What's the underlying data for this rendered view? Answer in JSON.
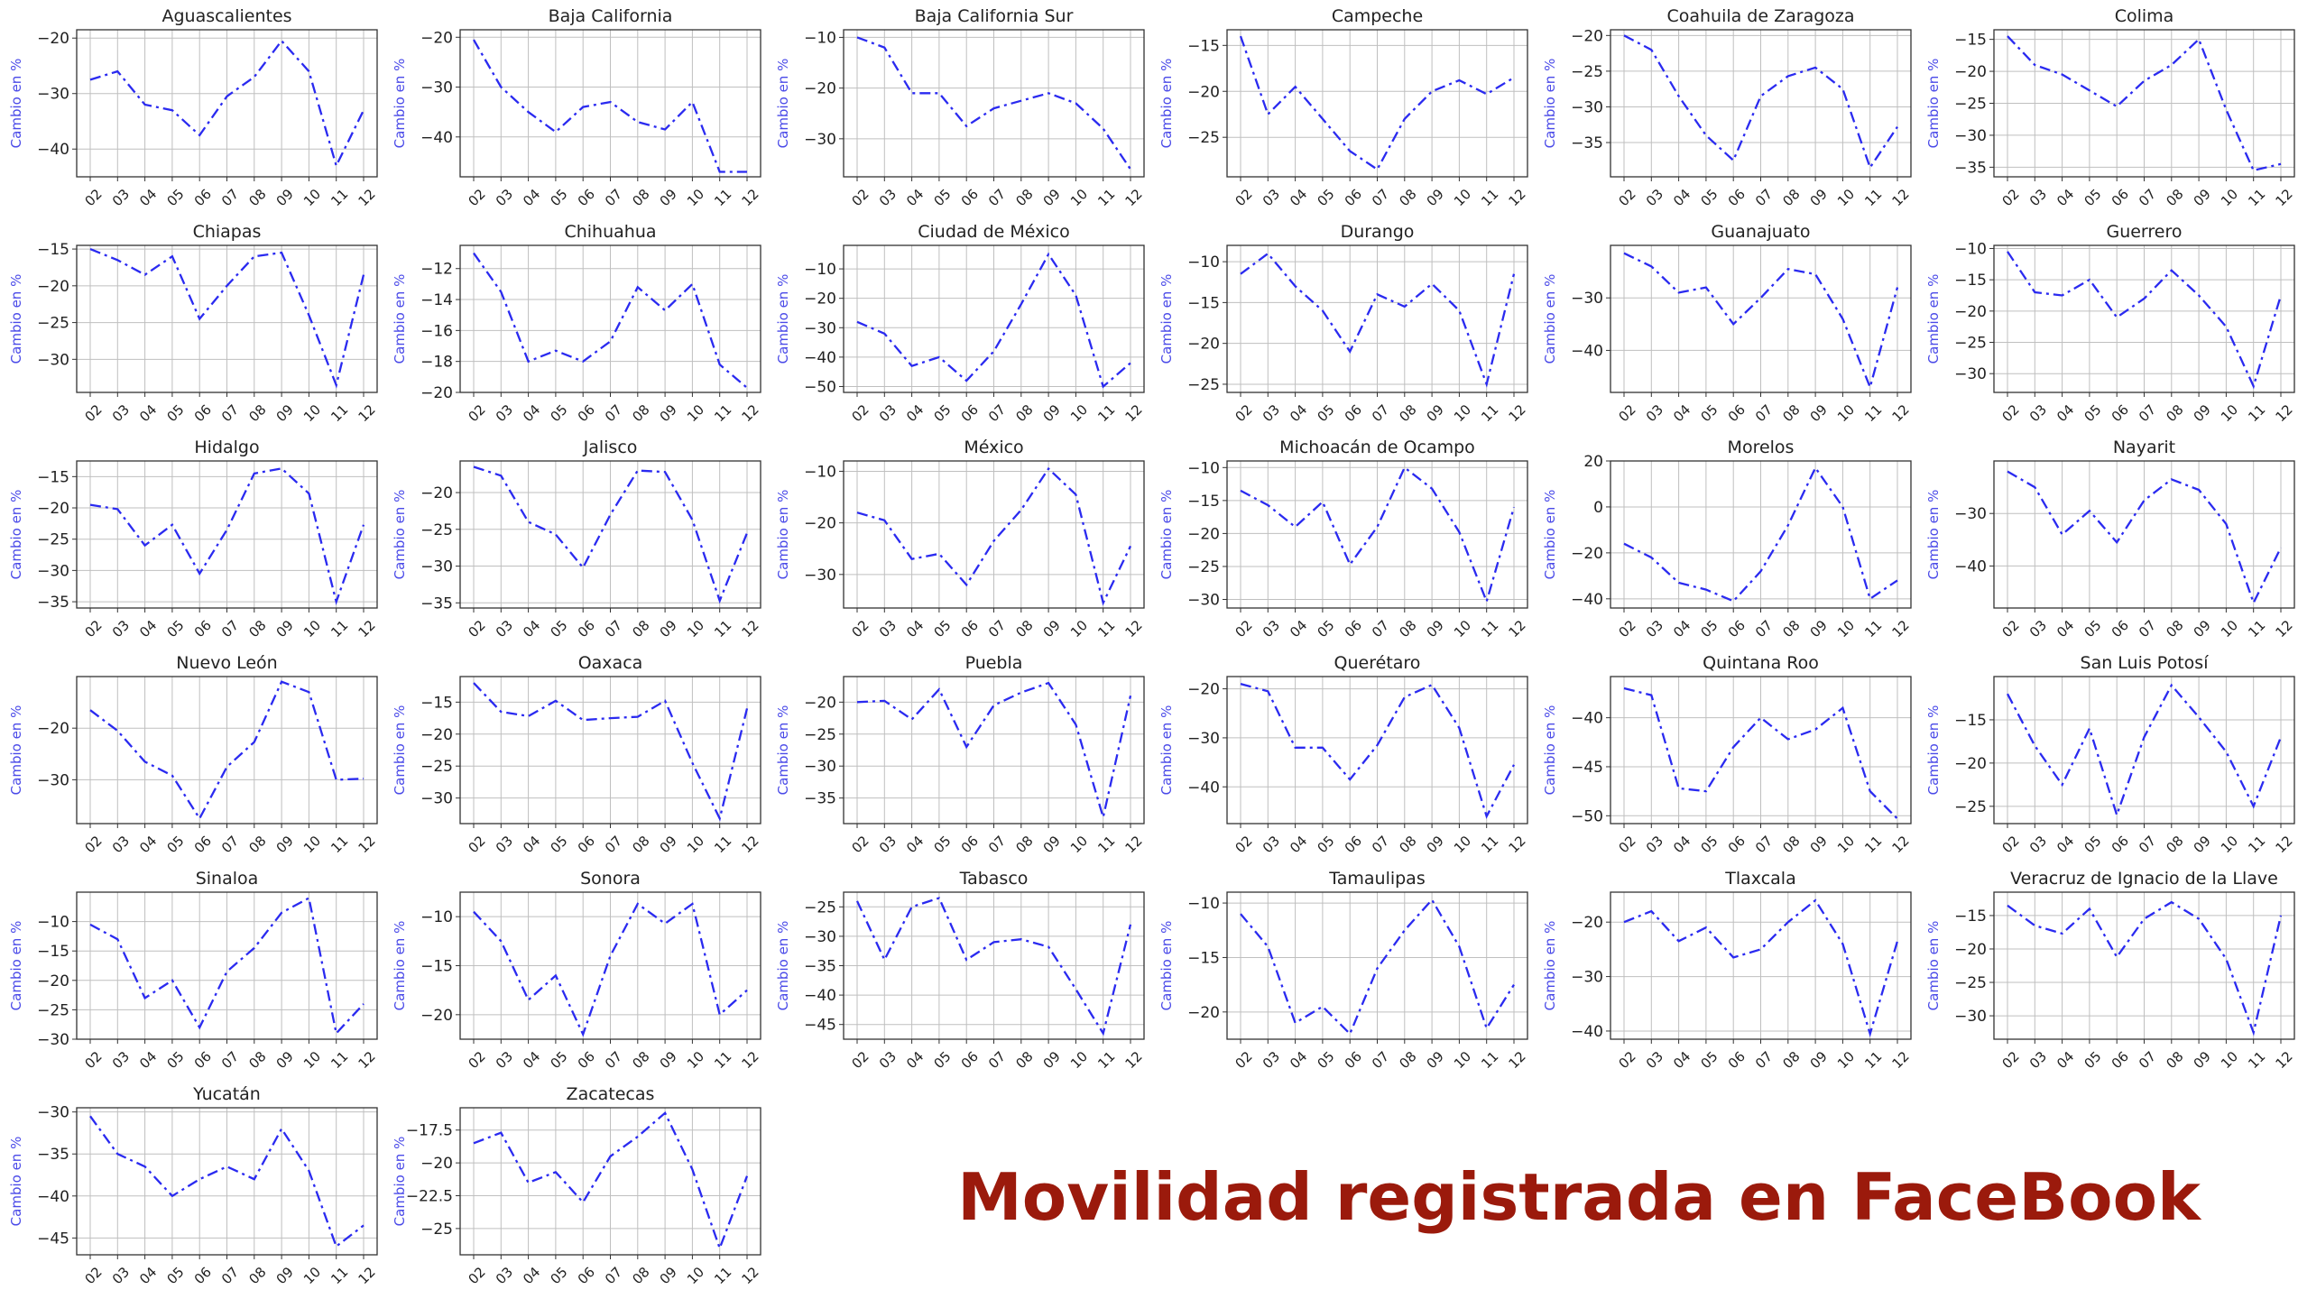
{
  "footer_title": "Movilidad registrada en FaceBook",
  "colors": {
    "line": "#2a2af0",
    "ylabel": "#4a4ae8",
    "grid": "#bfbfbf",
    "title": "#9b1a0c"
  },
  "chart_data": [
    {
      "type": "line",
      "title": "Aguascalientes",
      "ylabel": "Cambio en %",
      "x": [
        "02",
        "03",
        "04",
        "05",
        "06",
        "07",
        "08",
        "09",
        "10",
        "11",
        "12"
      ],
      "values": [
        -27.5,
        -26,
        -32,
        -33,
        -37.5,
        -30.5,
        -27,
        -20.5,
        -26,
        -43,
        -33
      ],
      "ylim": [
        -45,
        -18.5
      ],
      "yticks": [
        -20,
        -30,
        -40
      ]
    },
    {
      "type": "line",
      "title": "Baja California",
      "ylabel": "Cambio en %",
      "x": [
        "02",
        "03",
        "04",
        "05",
        "06",
        "07",
        "08",
        "09",
        "10",
        "11",
        "12"
      ],
      "values": [
        -20.5,
        -30,
        -35,
        -39,
        -34,
        -33,
        -37,
        -38.5,
        -33,
        -47,
        -47
      ],
      "ylim": [
        -48,
        -18.5
      ],
      "yticks": [
        -20,
        -30,
        -40
      ]
    },
    {
      "type": "line",
      "title": "Baja California Sur",
      "ylabel": "Cambio en %",
      "x": [
        "02",
        "03",
        "04",
        "05",
        "06",
        "07",
        "08",
        "09",
        "10",
        "11",
        "12"
      ],
      "values": [
        -10,
        -12,
        -21,
        -21,
        -27.5,
        -24,
        -22.5,
        -21,
        -23,
        -28,
        -36
      ],
      "ylim": [
        -37.5,
        -8.5
      ],
      "yticks": [
        -10,
        -20,
        -30
      ]
    },
    {
      "type": "line",
      "title": "Campeche",
      "ylabel": "Cambio en %",
      "x": [
        "02",
        "03",
        "04",
        "05",
        "06",
        "07",
        "08",
        "09",
        "10",
        "11",
        "12"
      ],
      "values": [
        -14,
        -22.5,
        -19.5,
        -23,
        -26.5,
        -28.5,
        -23,
        -20,
        -18.8,
        -20.3,
        -18.5
      ],
      "ylim": [
        -29.3,
        -13.3
      ],
      "yticks": [
        -15,
        -20,
        -25
      ]
    },
    {
      "type": "line",
      "title": "Coahuila de Zaragoza",
      "ylabel": "Cambio en %",
      "x": [
        "02",
        "03",
        "04",
        "05",
        "06",
        "07",
        "08",
        "09",
        "10",
        "11",
        "12"
      ],
      "values": [
        -20,
        -22,
        -28.5,
        -34,
        -37.5,
        -28.5,
        -25.7,
        -24.5,
        -27.5,
        -38.5,
        -32.8
      ],
      "ylim": [
        -39.8,
        -19.2
      ],
      "yticks": [
        -20,
        -25,
        -30,
        -35
      ]
    },
    {
      "type": "line",
      "title": "Colima",
      "ylabel": "Cambio en %",
      "x": [
        "02",
        "03",
        "04",
        "05",
        "06",
        "07",
        "08",
        "09",
        "10",
        "11",
        "12"
      ],
      "values": [
        -14.5,
        -19,
        -20.5,
        -23,
        -25.5,
        -21.5,
        -19,
        -15,
        -26,
        -35.5,
        -34.5
      ],
      "ylim": [
        -36.5,
        -13.5
      ],
      "yticks": [
        -15,
        -20,
        -25,
        -30,
        -35
      ]
    },
    {
      "type": "line",
      "title": "Chiapas",
      "ylabel": "Cambio en %",
      "x": [
        "02",
        "03",
        "04",
        "05",
        "06",
        "07",
        "08",
        "09",
        "10",
        "11",
        "12"
      ],
      "values": [
        -15,
        -16.5,
        -18.5,
        -16,
        -24.5,
        -20,
        -16,
        -15.5,
        -24,
        -33.5,
        -18.5
      ],
      "ylim": [
        -34.5,
        -14.5
      ],
      "yticks": [
        -15,
        -20,
        -25,
        -30
      ]
    },
    {
      "type": "line",
      "title": "Chihuahua",
      "ylabel": "Cambio en %",
      "x": [
        "02",
        "03",
        "04",
        "05",
        "06",
        "07",
        "08",
        "09",
        "10",
        "11",
        "12"
      ],
      "values": [
        -11,
        -13.5,
        -18,
        -17.3,
        -18,
        -16.7,
        -13.2,
        -14.7,
        -13,
        -18.2,
        -19.7
      ],
      "ylim": [
        -20,
        -10.5
      ],
      "yticks": [
        -12,
        -14,
        -16,
        -18,
        -20
      ]
    },
    {
      "type": "line",
      "title": "Ciudad de México",
      "ylabel": "Cambio en %",
      "x": [
        "02",
        "03",
        "04",
        "05",
        "06",
        "07",
        "08",
        "09",
        "10",
        "11",
        "12"
      ],
      "values": [
        -28,
        -32,
        -43,
        -40,
        -48,
        -38,
        -22,
        -5,
        -19,
        -50,
        -42
      ],
      "ylim": [
        -52,
        -2
      ],
      "yticks": [
        -10,
        -20,
        -30,
        -40,
        -50
      ]
    },
    {
      "type": "line",
      "title": "Durango",
      "ylabel": "Cambio en %",
      "x": [
        "02",
        "03",
        "04",
        "05",
        "06",
        "07",
        "08",
        "09",
        "10",
        "11",
        "12"
      ],
      "values": [
        -11.5,
        -9,
        -13,
        -16,
        -21,
        -14,
        -15.5,
        -12.7,
        -16,
        -25,
        -11.5
      ],
      "ylim": [
        -26,
        -8
      ],
      "yticks": [
        -10,
        -15,
        -20,
        -25
      ]
    },
    {
      "type": "line",
      "title": "Guanajuato",
      "ylabel": "Cambio en %",
      "x": [
        "02",
        "03",
        "04",
        "05",
        "06",
        "07",
        "08",
        "09",
        "10",
        "11",
        "12"
      ],
      "values": [
        -21.5,
        -24,
        -29,
        -28,
        -35,
        -30,
        -24.5,
        -25.5,
        -34,
        -47,
        -28
      ],
      "ylim": [
        -48,
        -20
      ],
      "yticks": [
        -30,
        -40
      ]
    },
    {
      "type": "line",
      "title": "Guerrero",
      "ylabel": "Cambio en %",
      "x": [
        "02",
        "03",
        "04",
        "05",
        "06",
        "07",
        "08",
        "09",
        "10",
        "11",
        "12"
      ],
      "values": [
        -10.5,
        -17,
        -17.5,
        -15,
        -21,
        -18,
        -13.5,
        -17.5,
        -22.5,
        -32,
        -17.5
      ],
      "ylim": [
        -33,
        -9.5
      ],
      "yticks": [
        -10,
        -15,
        -20,
        -25,
        -30
      ]
    },
    {
      "type": "line",
      "title": "Hidalgo",
      "ylabel": "Cambio en %",
      "x": [
        "02",
        "03",
        "04",
        "05",
        "06",
        "07",
        "08",
        "09",
        "10",
        "11",
        "12"
      ],
      "values": [
        -19.5,
        -20.2,
        -26,
        -22.7,
        -30.5,
        -23.5,
        -14.5,
        -13.7,
        -17.7,
        -35,
        -22.7
      ],
      "ylim": [
        -36,
        -12.5
      ],
      "yticks": [
        -15,
        -20,
        -25,
        -30,
        -35
      ]
    },
    {
      "type": "line",
      "title": "Jalisco",
      "ylabel": "Cambio en %",
      "x": [
        "02",
        "03",
        "04",
        "05",
        "06",
        "07",
        "08",
        "09",
        "10",
        "11",
        "12"
      ],
      "values": [
        -16.5,
        -17.7,
        -24,
        -25.7,
        -30.2,
        -23,
        -17,
        -17.2,
        -23.7,
        -34.7,
        -25.5
      ],
      "ylim": [
        -35.7,
        -15.7
      ],
      "yticks": [
        -20,
        -25,
        -30,
        -35
      ]
    },
    {
      "type": "line",
      "title": "México",
      "ylabel": "Cambio en %",
      "x": [
        "02",
        "03",
        "04",
        "05",
        "06",
        "07",
        "08",
        "09",
        "10",
        "11",
        "12"
      ],
      "values": [
        -18,
        -19.5,
        -27,
        -26,
        -32,
        -23.5,
        -17.5,
        -9.5,
        -14.5,
        -35.5,
        -24.5
      ],
      "ylim": [
        -36.5,
        -8
      ],
      "yticks": [
        -10,
        -20,
        -30
      ]
    },
    {
      "type": "line",
      "title": "Michoacán de Ocampo",
      "ylabel": "Cambio en %",
      "x": [
        "02",
        "03",
        "04",
        "05",
        "06",
        "07",
        "08",
        "09",
        "10",
        "11",
        "12"
      ],
      "values": [
        -13.5,
        -15.7,
        -19,
        -15.2,
        -24.7,
        -19,
        -10,
        -13.2,
        -19.8,
        -30.3,
        -16
      ],
      "ylim": [
        -31.3,
        -9
      ],
      "yticks": [
        -10,
        -15,
        -20,
        -25,
        -30
      ]
    },
    {
      "type": "line",
      "title": "Morelos",
      "ylabel": "Cambio en %",
      "x": [
        "02",
        "03",
        "04",
        "05",
        "06",
        "07",
        "08",
        "09",
        "10",
        "11",
        "12"
      ],
      "values": [
        -16,
        -22,
        -33,
        -36,
        -41,
        -28,
        -8,
        17,
        0,
        -40,
        -32
      ],
      "ylim": [
        -44,
        20
      ],
      "yticks": [
        20,
        0,
        -20,
        -40
      ]
    },
    {
      "type": "line",
      "title": "Nayarit",
      "ylabel": "Cambio en %",
      "x": [
        "02",
        "03",
        "04",
        "05",
        "06",
        "07",
        "08",
        "09",
        "10",
        "11",
        "12"
      ],
      "values": [
        -22,
        -25,
        -34,
        -29.5,
        -35.5,
        -27.5,
        -23.5,
        -25.5,
        -32,
        -47,
        -36.5
      ],
      "ylim": [
        -48,
        -20
      ],
      "yticks": [
        -30,
        -40
      ]
    },
    {
      "type": "line",
      "title": "Nuevo León",
      "ylabel": "Cambio en %",
      "x": [
        "02",
        "03",
        "04",
        "05",
        "06",
        "07",
        "08",
        "09",
        "10",
        "11",
        "12"
      ],
      "values": [
        -16.5,
        -20.5,
        -26.5,
        -29.2,
        -37.5,
        -27.5,
        -22.7,
        -11,
        -13,
        -30,
        -29.8
      ],
      "ylim": [
        -38.5,
        -10
      ],
      "yticks": [
        -20,
        -30
      ]
    },
    {
      "type": "line",
      "title": "Oaxaca",
      "ylabel": "Cambio en %",
      "x": [
        "02",
        "03",
        "04",
        "05",
        "06",
        "07",
        "08",
        "09",
        "10",
        "11",
        "12"
      ],
      "values": [
        -12,
        -16.5,
        -17.2,
        -14.8,
        -17.8,
        -17.5,
        -17.3,
        -14.8,
        -24.5,
        -33.2,
        -16
      ],
      "ylim": [
        -34,
        -11
      ],
      "yticks": [
        -15,
        -20,
        -25,
        -30
      ]
    },
    {
      "type": "line",
      "title": "Puebla",
      "ylabel": "Cambio en %",
      "x": [
        "02",
        "03",
        "04",
        "05",
        "06",
        "07",
        "08",
        "09",
        "10",
        "11",
        "12"
      ],
      "values": [
        -20,
        -19.8,
        -22.7,
        -18,
        -27,
        -20.5,
        -18.5,
        -17,
        -23.5,
        -38,
        -19
      ],
      "ylim": [
        -39,
        -16
      ],
      "yticks": [
        -20,
        -25,
        -30,
        -35
      ]
    },
    {
      "type": "line",
      "title": "Querétaro",
      "ylabel": "Cambio en %",
      "x": [
        "02",
        "03",
        "04",
        "05",
        "06",
        "07",
        "08",
        "09",
        "10",
        "11",
        "12"
      ],
      "values": [
        -19,
        -20.5,
        -32,
        -32,
        -38.5,
        -31.5,
        -21.7,
        -19.2,
        -28,
        -46,
        -35.5
      ],
      "ylim": [
        -47.5,
        -17.5
      ],
      "yticks": [
        -20,
        -30,
        -40
      ]
    },
    {
      "type": "line",
      "title": "Quintana Roo",
      "ylabel": "Cambio en %",
      "x": [
        "02",
        "03",
        "04",
        "05",
        "06",
        "07",
        "08",
        "09",
        "10",
        "11",
        "12"
      ],
      "values": [
        -37,
        -37.7,
        -47.2,
        -47.5,
        -43,
        -40,
        -42.2,
        -41.2,
        -39,
        -47.5,
        -50.3
      ],
      "ylim": [
        -50.8,
        -35.8
      ],
      "yticks": [
        -40,
        -45,
        -50
      ]
    },
    {
      "type": "line",
      "title": "San Luis Potosí",
      "ylabel": "Cambio en %",
      "x": [
        "02",
        "03",
        "04",
        "05",
        "06",
        "07",
        "08",
        "09",
        "10",
        "11",
        "12"
      ],
      "values": [
        -12,
        -18,
        -22.5,
        -16,
        -26,
        -17,
        -11,
        -14.7,
        -18.7,
        -25,
        -17
      ],
      "ylim": [
        -27,
        -10
      ],
      "yticks": [
        -15,
        -20,
        -25
      ]
    },
    {
      "type": "line",
      "title": "Sinaloa",
      "ylabel": "Cambio en %",
      "x": [
        "02",
        "03",
        "04",
        "05",
        "06",
        "07",
        "08",
        "09",
        "10",
        "11",
        "12"
      ],
      "values": [
        -10.5,
        -13,
        -23,
        -20,
        -28,
        -18.5,
        -14.5,
        -8.5,
        -6,
        -29,
        -24
      ],
      "ylim": [
        -30,
        -5
      ],
      "yticks": [
        -10,
        -15,
        -20,
        -25,
        -30
      ]
    },
    {
      "type": "line",
      "title": "Sonora",
      "ylabel": "Cambio en %",
      "x": [
        "02",
        "03",
        "04",
        "05",
        "06",
        "07",
        "08",
        "09",
        "10",
        "11",
        "12"
      ],
      "values": [
        -9.5,
        -12.5,
        -18.5,
        -16,
        -22,
        -14,
        -8.7,
        -10.7,
        -8.7,
        -20,
        -17.5
      ],
      "ylim": [
        -22.5,
        -7.5
      ],
      "yticks": [
        -10,
        -15,
        -20
      ]
    },
    {
      "type": "line",
      "title": "Tabasco",
      "ylabel": "Cambio en %",
      "x": [
        "02",
        "03",
        "04",
        "05",
        "06",
        "07",
        "08",
        "09",
        "10",
        "11",
        "12"
      ],
      "values": [
        -24,
        -34,
        -25,
        -23.5,
        -34,
        -31,
        -30.5,
        -31.8,
        -39,
        -46.5,
        -28
      ],
      "ylim": [
        -47.5,
        -22.5
      ],
      "yticks": [
        -25,
        -30,
        -35,
        -40,
        -45
      ]
    },
    {
      "type": "line",
      "title": "Tamaulipas",
      "ylabel": "Cambio en %",
      "x": [
        "02",
        "03",
        "04",
        "05",
        "06",
        "07",
        "08",
        "09",
        "10",
        "11",
        "12"
      ],
      "values": [
        -11,
        -14,
        -21,
        -19.5,
        -22,
        -16,
        -12.5,
        -9.7,
        -14,
        -21.5,
        -17.5
      ],
      "ylim": [
        -22.5,
        -9
      ],
      "yticks": [
        -10,
        -15,
        -20
      ]
    },
    {
      "type": "line",
      "title": "Tlaxcala",
      "ylabel": "Cambio en %",
      "x": [
        "02",
        "03",
        "04",
        "05",
        "06",
        "07",
        "08",
        "09",
        "10",
        "11",
        "12"
      ],
      "values": [
        -20,
        -18,
        -23.5,
        -21,
        -26.5,
        -25,
        -20,
        -16,
        -24,
        -40.5,
        -23.5
      ],
      "ylim": [
        -41.5,
        -14.5
      ],
      "yticks": [
        -20,
        -30,
        -40
      ]
    },
    {
      "type": "line",
      "title": "Veracruz de Ignacio de la Llave",
      "ylabel": "Cambio en %",
      "x": [
        "02",
        "03",
        "04",
        "05",
        "06",
        "07",
        "08",
        "09",
        "10",
        "11",
        "12"
      ],
      "values": [
        -13.5,
        -16.5,
        -17.7,
        -14,
        -21.2,
        -15.5,
        -13,
        -15.5,
        -21.5,
        -32.5,
        -15
      ],
      "ylim": [
        -33.5,
        -11.5
      ],
      "yticks": [
        -15,
        -20,
        -25,
        -30
      ]
    },
    {
      "type": "line",
      "title": "Yucatán",
      "ylabel": "Cambio en %",
      "x": [
        "02",
        "03",
        "04",
        "05",
        "06",
        "07",
        "08",
        "09",
        "10",
        "11",
        "12"
      ],
      "values": [
        -30.5,
        -35,
        -36.5,
        -40,
        -38,
        -36.5,
        -38,
        -32,
        -37,
        -46,
        -43.5
      ],
      "ylim": [
        -47,
        -29.5
      ],
      "yticks": [
        -30,
        -35,
        -40,
        -45
      ]
    },
    {
      "type": "line",
      "title": "Zacatecas",
      "ylabel": "Cambio en %",
      "x": [
        "02",
        "03",
        "04",
        "05",
        "06",
        "07",
        "08",
        "09",
        "10",
        "11",
        "12"
      ],
      "values": [
        -18.5,
        -17.7,
        -21.5,
        -20.7,
        -23,
        -19.5,
        -18,
        -16.2,
        -20.5,
        -26.5,
        -21
      ],
      "ylim": [
        -27,
        -15.8
      ],
      "yticks": [
        -17.5,
        -20,
        -22.5,
        -25
      ]
    }
  ]
}
